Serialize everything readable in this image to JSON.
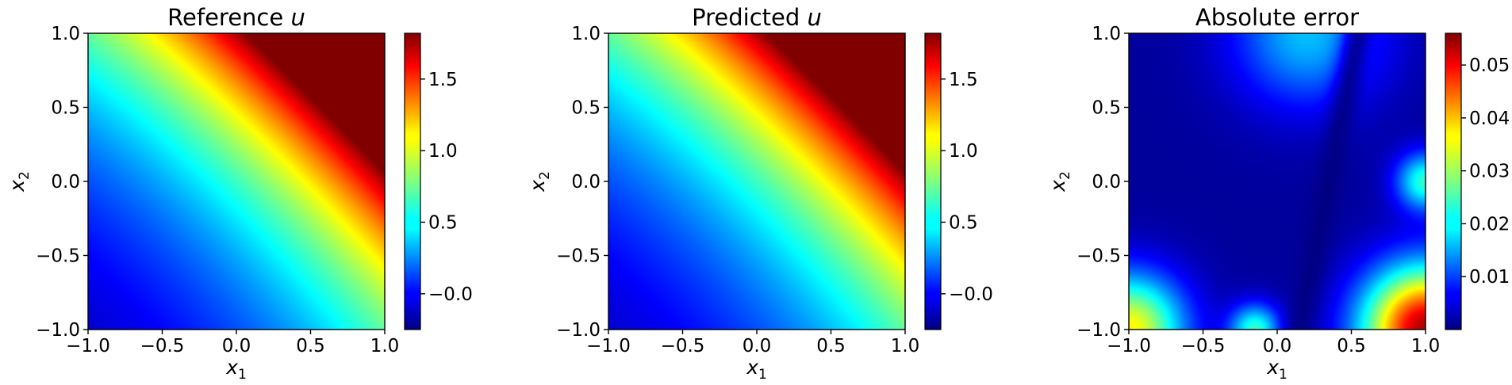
{
  "chart_data": [
    {
      "type": "heatmap",
      "title": "Reference u",
      "title_main": "Reference ",
      "title_var": "u",
      "xlabel": "x1",
      "ylabel": "x2",
      "xlabel_base": "x",
      "xlabel_sub": "1",
      "ylabel_base": "x",
      "ylabel_sub": "2",
      "xlim": [
        -1.0,
        1.0
      ],
      "ylim": [
        -1.0,
        1.0
      ],
      "xticks": [
        "−1.0",
        "−0.5",
        "0.0",
        "0.5",
        "1.0"
      ],
      "yticks": [
        "−1.0",
        "−0.5",
        "0.0",
        "0.5",
        "1.0"
      ],
      "colormap": "jet",
      "field": "solution",
      "colorbar": {
        "range": [
          -0.25,
          1.82
        ],
        "ticks": [
          -0.0,
          0.5,
          1.0,
          1.5
        ],
        "tick_labels": [
          "−0.0",
          "0.5",
          "1.0",
          "1.5"
        ]
      },
      "grid": false
    },
    {
      "type": "heatmap",
      "title": "Predicted u",
      "title_main": "Predicted ",
      "title_var": "u",
      "xlabel": "x1",
      "ylabel": "x2",
      "xlabel_base": "x",
      "xlabel_sub": "1",
      "ylabel_base": "x",
      "ylabel_sub": "2",
      "xlim": [
        -1.0,
        1.0
      ],
      "ylim": [
        -1.0,
        1.0
      ],
      "xticks": [
        "−1.0",
        "−0.5",
        "0.0",
        "0.5",
        "1.0"
      ],
      "yticks": [
        "−1.0",
        "−0.5",
        "0.0",
        "0.5",
        "1.0"
      ],
      "colormap": "jet",
      "field": "solution",
      "colorbar": {
        "range": [
          -0.25,
          1.82
        ],
        "ticks": [
          -0.0,
          0.5,
          1.0,
          1.5
        ],
        "tick_labels": [
          "−0.0",
          "0.5",
          "1.0",
          "1.5"
        ]
      },
      "grid": false
    },
    {
      "type": "heatmap",
      "title": "Absolute error",
      "title_main": "Absolute error",
      "title_var": "",
      "xlabel": "x1",
      "ylabel": "x2",
      "xlabel_base": "x",
      "xlabel_sub": "1",
      "ylabel_base": "x",
      "ylabel_sub": "2",
      "xlim": [
        -1.0,
        1.0
      ],
      "ylim": [
        -1.0,
        1.0
      ],
      "xticks": [
        "−1.0",
        "−0.5",
        "0.0",
        "0.5",
        "1.0"
      ],
      "yticks": [
        "−1.0",
        "−0.5",
        "0.0",
        "0.5",
        "1.0"
      ],
      "colormap": "jet",
      "field": "error",
      "colorbar": {
        "range": [
          0.0,
          0.056
        ],
        "ticks": [
          0.01,
          0.02,
          0.03,
          0.04,
          0.05
        ],
        "tick_labels": [
          "0.01",
          "0.02",
          "0.03",
          "0.04",
          "0.05"
        ]
      },
      "grid": false
    }
  ]
}
